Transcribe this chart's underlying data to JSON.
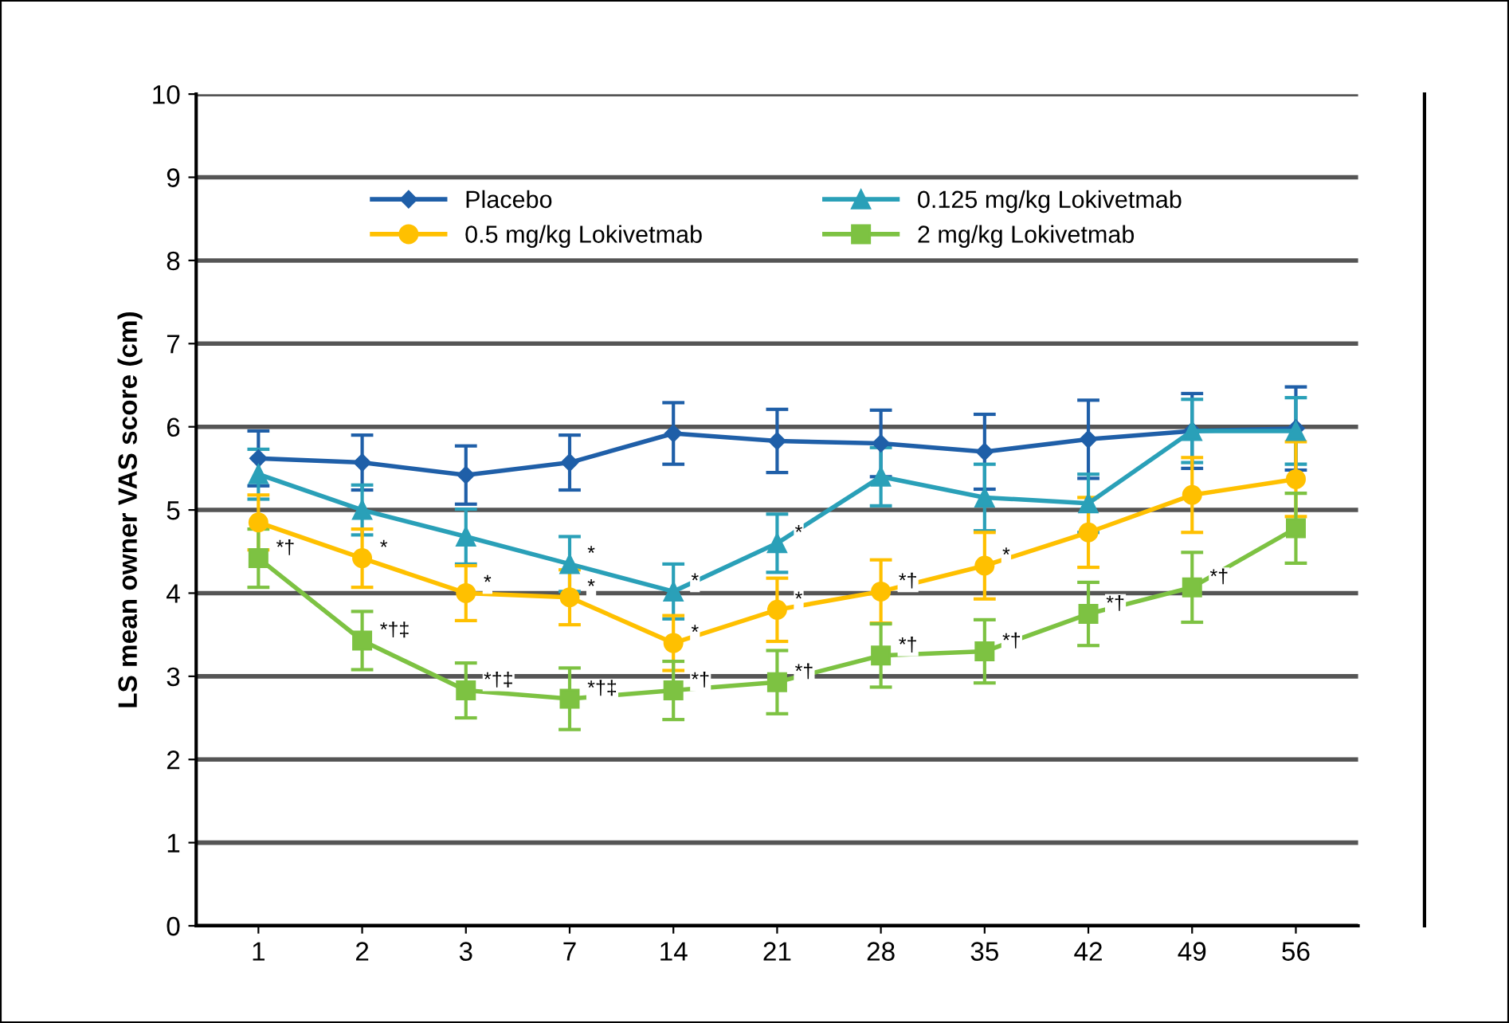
{
  "chart_data": {
    "type": "line",
    "ylabel": "LS mean owner VAS score (cm)",
    "categories": [
      "1",
      "2",
      "3",
      "7",
      "14",
      "21",
      "28",
      "35",
      "42",
      "49",
      "56"
    ],
    "ylim": [
      0,
      10
    ],
    "yticks": [
      0,
      1,
      2,
      3,
      4,
      5,
      6,
      7,
      8,
      9,
      10
    ],
    "grid": "y",
    "legend": "top",
    "line_style": "solid",
    "series": [
      {
        "name": "Placebo",
        "color": "#1f5fa8",
        "marker": "diamond",
        "values": [
          5.62,
          5.57,
          5.42,
          5.57,
          5.92,
          5.83,
          5.8,
          5.7,
          5.85,
          5.95,
          5.98
        ],
        "errors": [
          0.33,
          0.33,
          0.35,
          0.33,
          0.37,
          0.38,
          0.4,
          0.45,
          0.47,
          0.45,
          0.5
        ]
      },
      {
        "name": "0.125 mg/kg Lokivetmab",
        "color": "#2aa0b8",
        "marker": "triangle",
        "values": [
          5.43,
          5.0,
          4.68,
          4.35,
          4.02,
          4.6,
          5.4,
          5.15,
          5.08,
          5.95,
          5.95
        ],
        "errors": [
          0.3,
          0.3,
          0.33,
          0.33,
          0.33,
          0.35,
          0.35,
          0.4,
          0.35,
          0.38,
          0.4
        ]
      },
      {
        "name": "0.5 mg/kg Lokivetmab",
        "color": "#ffc000",
        "marker": "circle",
        "values": [
          4.85,
          4.42,
          4.0,
          3.95,
          3.4,
          3.8,
          4.02,
          4.33,
          4.73,
          5.18,
          5.37
        ],
        "errors": [
          0.33,
          0.35,
          0.33,
          0.33,
          0.33,
          0.38,
          0.38,
          0.4,
          0.42,
          0.45,
          0.45
        ]
      },
      {
        "name": "2 mg/kg Lokivetmab",
        "color": "#7dc242",
        "marker": "square",
        "values": [
          4.42,
          3.43,
          2.83,
          2.73,
          2.83,
          2.93,
          3.25,
          3.3,
          3.75,
          4.07,
          4.78
        ],
        "errors": [
          0.35,
          0.35,
          0.33,
          0.37,
          0.35,
          0.38,
          0.38,
          0.38,
          0.38,
          0.42,
          0.42
        ]
      }
    ],
    "annotations": [
      {
        "text": "*†",
        "x": "1",
        "y": 4.42
      },
      {
        "text": "*†‡",
        "x": "2",
        "y": 3.43
      },
      {
        "text": "*†‡",
        "x": "3",
        "y": 2.83
      },
      {
        "text": "*†‡",
        "x": "7",
        "y": 2.73
      },
      {
        "text": "*†",
        "x": "14",
        "y": 2.83
      },
      {
        "text": "*†",
        "x": "21",
        "y": 2.93
      },
      {
        "text": "*†",
        "x": "28",
        "y": 3.25
      },
      {
        "text": "*†",
        "x": "35",
        "y": 3.3
      },
      {
        "text": "*†",
        "x": "42",
        "y": 3.75
      },
      {
        "text": "*†",
        "x": "49",
        "y": 4.07
      },
      {
        "text": "*",
        "x": "2",
        "y": 4.42
      },
      {
        "text": "*",
        "x": "3",
        "y": 4.0
      },
      {
        "text": "*",
        "x": "7",
        "y": 3.95
      },
      {
        "text": "*",
        "x": "14",
        "y": 3.4
      },
      {
        "text": "*",
        "x": "21",
        "y": 3.8
      },
      {
        "text": "*†",
        "x": "28",
        "y": 4.02
      },
      {
        "text": "*",
        "x": "35",
        "y": 4.33
      },
      {
        "text": "*",
        "x": "7",
        "y": 4.35
      },
      {
        "text": "*",
        "x": "14",
        "y": 4.02
      },
      {
        "text": "*",
        "x": "21",
        "y": 4.6
      }
    ]
  }
}
